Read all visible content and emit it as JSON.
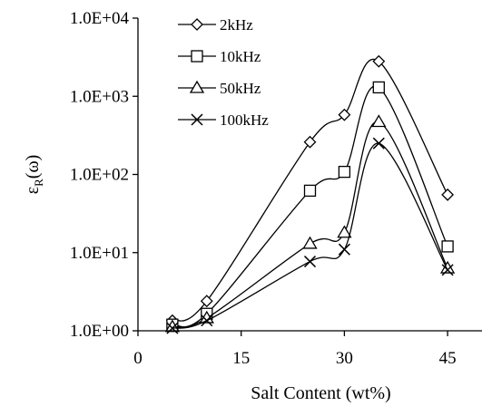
{
  "chart_data": {
    "type": "line",
    "title": "",
    "xlabel": "Salt Content (wt%)",
    "ylabel_main": "ε",
    "ylabel_sub": "R",
    "ylabel_tail": "(ω)",
    "xlim": [
      0,
      50
    ],
    "ylim": [
      1,
      10000
    ],
    "y_scale": "log",
    "grid": false,
    "legend_position": "top-left",
    "x_ticks": [
      0,
      15,
      30,
      45
    ],
    "x_tick_labels": [
      "0",
      "15",
      "30",
      "45"
    ],
    "y_ticks": [
      1,
      10,
      100,
      1000,
      10000
    ],
    "y_tick_labels": [
      "1.0E+00",
      "1.0E+01",
      "1.0E+02",
      "1.0E+03",
      "1.0E+04"
    ],
    "x": [
      5,
      10,
      25,
      30,
      35,
      45
    ],
    "series": [
      {
        "name": "2kHz",
        "marker": "diamond",
        "values": [
          1.35,
          2.4,
          260,
          580,
          2800,
          55
        ]
      },
      {
        "name": "10kHz",
        "marker": "square",
        "values": [
          1.2,
          1.65,
          62,
          108,
          1300,
          12
        ]
      },
      {
        "name": "50kHz",
        "marker": "triangle",
        "values": [
          1.12,
          1.45,
          13,
          18,
          470,
          6.3
        ]
      },
      {
        "name": "100kHz",
        "marker": "x",
        "values": [
          1.08,
          1.35,
          7.7,
          11,
          250,
          6.0
        ]
      }
    ]
  }
}
